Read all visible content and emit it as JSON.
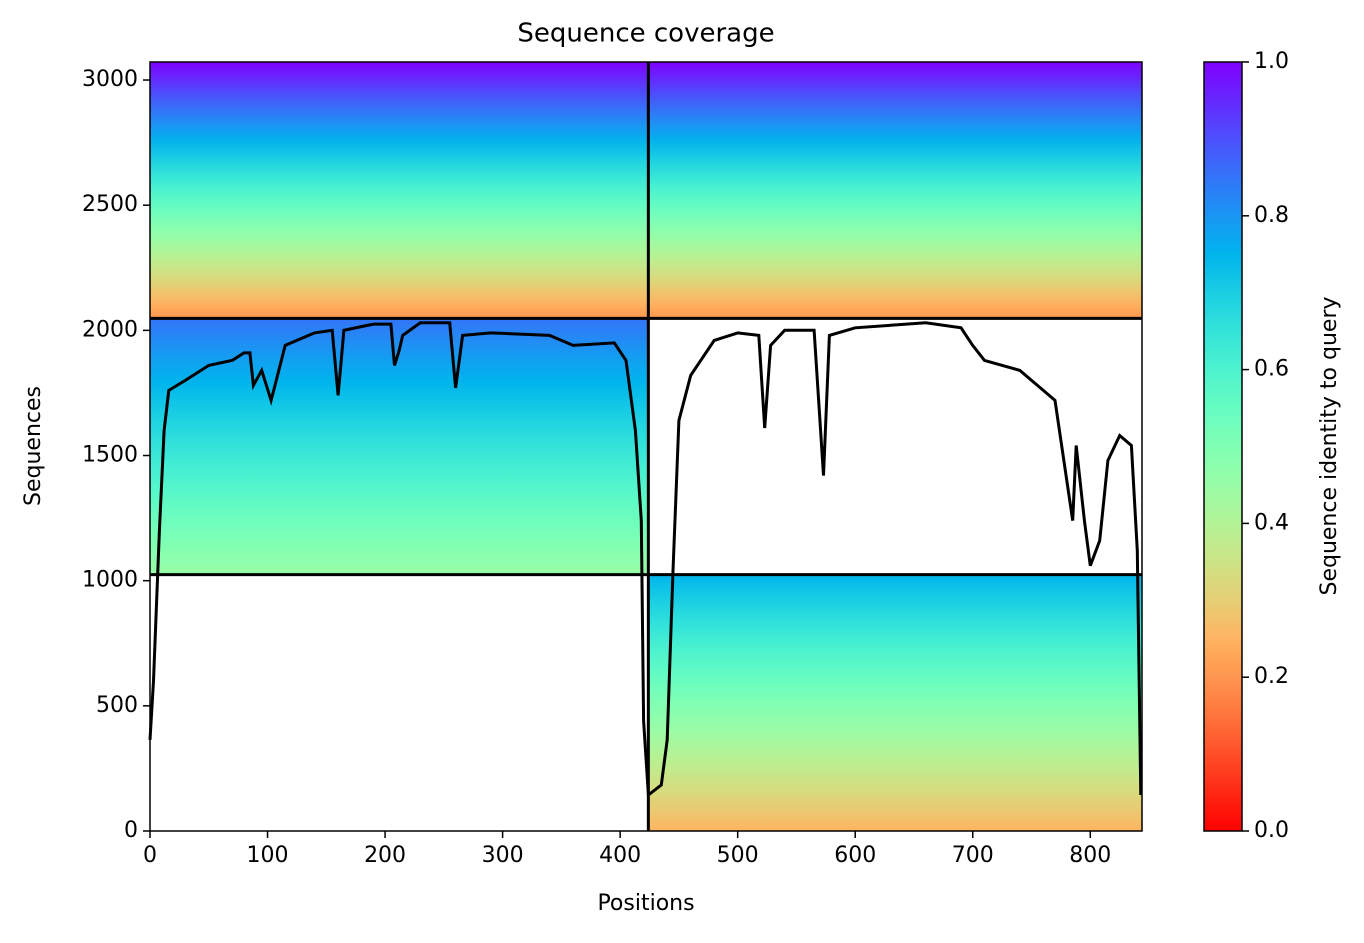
{
  "chart_data": {
    "type": "coverage",
    "title": "Sequence coverage",
    "xlabel": "Positions",
    "ylabel": "Sequences",
    "xlim": [
      0,
      844
    ],
    "ylim": [
      0,
      3072
    ],
    "xticks": [
      0,
      100,
      200,
      300,
      400,
      500,
      600,
      700,
      800
    ],
    "yticks": [
      0,
      500,
      1000,
      1500,
      2000,
      2500,
      3000
    ],
    "colormap": "rainbow_r",
    "colorbar": {
      "label": "Sequence identity to query",
      "lim": [
        0,
        1
      ],
      "ticks": [
        {
          "value": 0,
          "label": "0.0"
        },
        {
          "value": 0.2,
          "label": "0.2"
        },
        {
          "value": 0.4,
          "label": "0.4"
        },
        {
          "value": 0.6,
          "label": "0.6"
        },
        {
          "value": 0.8,
          "label": "0.8"
        },
        {
          "value": 1,
          "label": "1.0"
        }
      ]
    },
    "blocks": [
      {
        "x": [
          0,
          844
        ],
        "y": [
          2048,
          3072
        ],
        "identity": [
          0.2,
          1
        ]
      },
      {
        "x": [
          0,
          424
        ],
        "y": [
          1024,
          2048
        ],
        "identity": [
          0.45,
          0.85
        ]
      },
      {
        "x": [
          424,
          844
        ],
        "y": [
          0,
          1024
        ],
        "identity": [
          0.25,
          0.75
        ]
      }
    ],
    "coverage": {
      "color": "#000000",
      "x": [
        0,
        3,
        8,
        12,
        16,
        30,
        50,
        70,
        80,
        85,
        88,
        95,
        103,
        108,
        115,
        125,
        140,
        155,
        160,
        165,
        190,
        205,
        208,
        212,
        215,
        230,
        255,
        260,
        266,
        290,
        340,
        360,
        395,
        405,
        413,
        418,
        420,
        424,
        435,
        440,
        445,
        450,
        460,
        480,
        500,
        518,
        523,
        528,
        540,
        565,
        573,
        578,
        600,
        630,
        660,
        690,
        700,
        710,
        740,
        760,
        770,
        785,
        788,
        795,
        800,
        808,
        815,
        825,
        835,
        840,
        843
      ],
      "values": [
        364,
        600,
        1200,
        1600,
        1760,
        1800,
        1860,
        1880,
        1910,
        1910,
        1780,
        1840,
        1720,
        1810,
        1940,
        1960,
        1990,
        2000,
        1740,
        2000,
        2025,
        2025,
        1860,
        1920,
        1980,
        2030,
        2030,
        1770,
        1980,
        1990,
        1980,
        1940,
        1950,
        1880,
        1600,
        1240,
        440,
        144,
        184,
        364,
        1040,
        1640,
        1820,
        1960,
        1990,
        1980,
        1610,
        1940,
        2000,
        2000,
        1420,
        1980,
        2010,
        2020,
        2030,
        2010,
        1940,
        1880,
        1840,
        1760,
        1720,
        1240,
        1540,
        1240,
        1060,
        1160,
        1480,
        1580,
        1540,
        1120,
        144
      ]
    }
  }
}
